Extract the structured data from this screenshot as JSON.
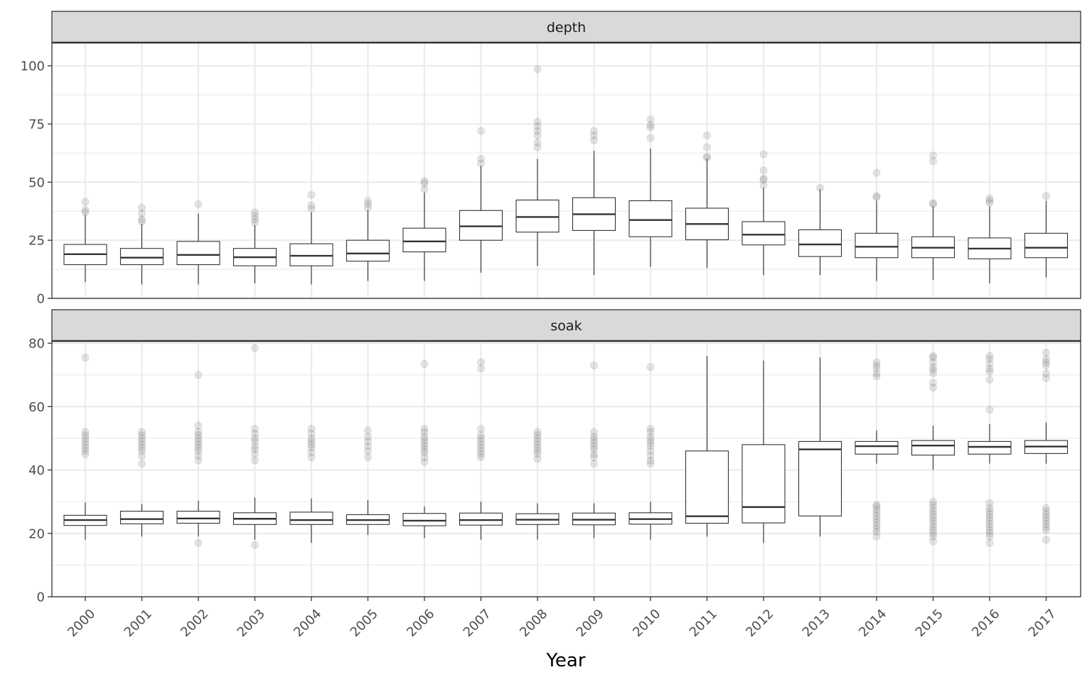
{
  "chart_data": {
    "type": "boxplot",
    "xlabel": "Year",
    "categories": [
      "2000",
      "2001",
      "2002",
      "2003",
      "2004",
      "2005",
      "2006",
      "2007",
      "2008",
      "2009",
      "2010",
      "2011",
      "2012",
      "2013",
      "2014",
      "2015",
      "2016",
      "2017"
    ],
    "colors": {
      "strip_bg": "#d9d9d9",
      "grid": "#ebebeb",
      "box_line": "#333333",
      "outlier": "#7f7f7f"
    },
    "panels": [
      {
        "name": "depth",
        "ylim": [
          0,
          110
        ],
        "yticks": [
          0,
          25,
          50,
          75,
          100
        ],
        "boxes": [
          {
            "x": "2000",
            "whisker_low": 7,
            "q1": 14.5,
            "median": 19,
            "q3": 23.2,
            "whisker_high": 36,
            "outliers": [
              37,
              38,
              41.5
            ]
          },
          {
            "x": "2001",
            "whisker_low": 6,
            "q1": 14.5,
            "median": 17.5,
            "q3": 21.5,
            "whisker_high": 32,
            "outliers": [
              33,
              34,
              36.5,
              39
            ]
          },
          {
            "x": "2002",
            "whisker_low": 6,
            "q1": 14.5,
            "median": 18.7,
            "q3": 24.5,
            "whisker_high": 36.5,
            "outliers": [
              40.5
            ]
          },
          {
            "x": "2003",
            "whisker_low": 6.5,
            "q1": 14,
            "median": 17.7,
            "q3": 21.5,
            "whisker_high": 31.5,
            "outliers": [
              32.5,
              34,
              35.5,
              37
            ]
          },
          {
            "x": "2004",
            "whisker_low": 6,
            "q1": 14,
            "median": 18.3,
            "q3": 23.5,
            "whisker_high": 37,
            "outliers": [
              38.5,
              40,
              44.5
            ]
          },
          {
            "x": "2005",
            "whisker_low": 7.5,
            "q1": 16,
            "median": 19.3,
            "q3": 25,
            "whisker_high": 38,
            "outliers": [
              39,
              40.5,
              42
            ]
          },
          {
            "x": "2006",
            "whisker_low": 7.5,
            "q1": 20,
            "median": 24.5,
            "q3": 30.2,
            "whisker_high": 45.5,
            "outliers": [
              47,
              49.5,
              50.5
            ]
          },
          {
            "x": "2007",
            "whisker_low": 11,
            "q1": 25,
            "median": 31,
            "q3": 37.8,
            "whisker_high": 57,
            "outliers": [
              58,
              60,
              72
            ]
          },
          {
            "x": "2008",
            "whisker_low": 14,
            "q1": 28.5,
            "median": 35,
            "q3": 42.3,
            "whisker_high": 60,
            "outliers": [
              65,
              67,
              70,
              72,
              74,
              76,
              98.5
            ]
          },
          {
            "x": "2009",
            "whisker_low": 10,
            "q1": 29.2,
            "median": 36.2,
            "q3": 43.3,
            "whisker_high": 63.5,
            "outliers": [
              68,
              70,
              72
            ]
          },
          {
            "x": "2010",
            "whisker_low": 13.5,
            "q1": 26.5,
            "median": 33.7,
            "q3": 42,
            "whisker_high": 64.5,
            "outliers": [
              69,
              73.5,
              74.5,
              77
            ]
          },
          {
            "x": "2011",
            "whisker_low": 13,
            "q1": 25.2,
            "median": 32,
            "q3": 38.8,
            "whisker_high": 60,
            "outliers": [
              60.5,
              61,
              65,
              70
            ]
          },
          {
            "x": "2012",
            "whisker_low": 10,
            "q1": 23,
            "median": 27.4,
            "q3": 33,
            "whisker_high": 47.5,
            "outliers": [
              48.5,
              51,
              51.5,
              55,
              62
            ]
          },
          {
            "x": "2013",
            "whisker_low": 10,
            "q1": 18,
            "median": 23.2,
            "q3": 29.5,
            "whisker_high": 47,
            "outliers": [
              47.5
            ]
          },
          {
            "x": "2014",
            "whisker_low": 7.5,
            "q1": 17.5,
            "median": 22.2,
            "q3": 28,
            "whisker_high": 42,
            "outliers": [
              43.5,
              44,
              54
            ]
          },
          {
            "x": "2015",
            "whisker_low": 8,
            "q1": 17.5,
            "median": 21.8,
            "q3": 26.5,
            "whisker_high": 39.5,
            "outliers": [
              40.5,
              41,
              59,
              61.5
            ]
          },
          {
            "x": "2016",
            "whisker_low": 6.5,
            "q1": 17,
            "median": 21.4,
            "q3": 26,
            "whisker_high": 39.5,
            "outliers": [
              41,
              42,
              43
            ]
          },
          {
            "x": "2017",
            "whisker_low": 9,
            "q1": 17.5,
            "median": 21.8,
            "q3": 28,
            "whisker_high": 42,
            "outliers": [
              44
            ]
          }
        ]
      },
      {
        "name": "soak",
        "ylim": [
          0,
          80.7
        ],
        "yticks": [
          0,
          20,
          40,
          60,
          80
        ],
        "boxes": [
          {
            "x": "2000",
            "whisker_low": 18,
            "q1": 22.5,
            "median": 24.2,
            "q3": 25.7,
            "whisker_high": 29.8,
            "outliers": [
              45,
              46,
              47,
              48,
              49,
              50,
              51,
              52,
              75.5
            ]
          },
          {
            "x": "2001",
            "whisker_low": 19,
            "q1": 23,
            "median": 24.5,
            "q3": 27,
            "whisker_high": 29.3,
            "outliers": [
              42,
              44.5,
              46,
              47,
              48,
              49,
              50,
              51,
              52
            ]
          },
          {
            "x": "2002",
            "whisker_low": 19,
            "q1": 23.2,
            "median": 24.7,
            "q3": 27,
            "whisker_high": 30.3,
            "outliers": [
              17,
              43,
              44.5,
              46,
              47,
              48,
              49,
              50,
              51,
              52,
              54,
              70
            ]
          },
          {
            "x": "2003",
            "whisker_low": 18,
            "q1": 22.8,
            "median": 24.6,
            "q3": 26.5,
            "whisker_high": 31.3,
            "outliers": [
              16.3,
              43,
              45,
              46.5,
              47.5,
              49,
              50,
              51.5,
              53,
              78.5
            ]
          },
          {
            "x": "2004",
            "whisker_low": 17,
            "q1": 22.8,
            "median": 24.2,
            "q3": 26.7,
            "whisker_high": 31,
            "outliers": [
              44,
              45.5,
              47,
              48,
              49,
              50,
              51.5,
              53
            ]
          },
          {
            "x": "2005",
            "whisker_low": 19.5,
            "q1": 22.8,
            "median": 24.2,
            "q3": 25.9,
            "whisker_high": 30.5,
            "outliers": [
              44,
              46,
              47.5,
              49,
              50.5,
              52.5
            ]
          },
          {
            "x": "2006",
            "whisker_low": 18.5,
            "q1": 22.4,
            "median": 24,
            "q3": 26.3,
            "whisker_high": 28.5,
            "outliers": [
              42.5,
              44,
              45.5,
              46.5,
              47.5,
              48.5,
              49.5,
              50.5,
              52,
              53,
              73.5
            ]
          },
          {
            "x": "2007",
            "whisker_low": 18,
            "q1": 22.6,
            "median": 24.2,
            "q3": 26.4,
            "whisker_high": 30,
            "outliers": [
              44,
              45,
              46,
              47,
              48,
              49,
              50,
              51,
              53,
              72,
              74
            ]
          },
          {
            "x": "2008",
            "whisker_low": 18,
            "q1": 22.8,
            "median": 24.3,
            "q3": 26.2,
            "whisker_high": 29.5,
            "outliers": [
              43.5,
              45,
              46,
              47,
              48,
              49,
              50,
              51,
              52
            ]
          },
          {
            "x": "2009",
            "whisker_low": 18.5,
            "q1": 22.7,
            "median": 24.3,
            "q3": 26.4,
            "whisker_high": 29.5,
            "outliers": [
              42,
              44,
              45,
              46.5,
              47.5,
              48.5,
              49.5,
              50.5,
              52,
              73
            ]
          },
          {
            "x": "2010",
            "whisker_low": 18,
            "q1": 22.9,
            "median": 24.5,
            "q3": 26.5,
            "whisker_high": 30,
            "outliers": [
              42,
              43,
              44.5,
              46,
              47.5,
              48.5,
              49.5,
              50.5,
              52,
              53,
              72.5
            ]
          },
          {
            "x": "2011",
            "whisker_low": 19,
            "q1": 23.2,
            "median": 25.4,
            "q3": 46,
            "whisker_high": 76,
            "outliers": []
          },
          {
            "x": "2012",
            "whisker_low": 17,
            "q1": 23.3,
            "median": 28.3,
            "q3": 48,
            "whisker_high": 74.5,
            "outliers": []
          },
          {
            "x": "2013",
            "whisker_low": 19,
            "q1": 25.5,
            "median": 46.5,
            "q3": 49,
            "whisker_high": 75.5,
            "outliers": []
          },
          {
            "x": "2014",
            "whisker_low": 42,
            "q1": 45,
            "median": 47.5,
            "q3": 49,
            "whisker_high": 52.5,
            "outliers": [
              19,
              20.5,
              21.5,
              22.5,
              23.5,
              24.5,
              25.5,
              26.5,
              27.5,
              28.5,
              29,
              69.5,
              70.5,
              72,
              73,
              74
            ]
          },
          {
            "x": "2015",
            "whisker_low": 40,
            "q1": 44.7,
            "median": 47.7,
            "q3": 49.3,
            "whisker_high": 54,
            "outliers": [
              17.5,
              19,
              20,
              21,
              22,
              23,
              24,
              25,
              26,
              27,
              28,
              29,
              30,
              66,
              67.5,
              70.5,
              71.5,
              72.5,
              74,
              75.5,
              76
            ]
          },
          {
            "x": "2016",
            "whisker_low": 42,
            "q1": 45,
            "median": 47.3,
            "q3": 49,
            "whisker_high": 54.5,
            "outliers": [
              17,
              19,
              20,
              21,
              22,
              23,
              24,
              25,
              26,
              27,
              28,
              29.5,
              59,
              68.5,
              71,
              72,
              73.5,
              75,
              76
            ]
          },
          {
            "x": "2017",
            "whisker_low": 42,
            "q1": 45.2,
            "median": 47.4,
            "q3": 49.3,
            "whisker_high": 55,
            "outliers": [
              18,
              21,
              22,
              23,
              24,
              25,
              26,
              27,
              28,
              69,
              70.5,
              73,
              74,
              75,
              77
            ]
          }
        ]
      }
    ]
  }
}
